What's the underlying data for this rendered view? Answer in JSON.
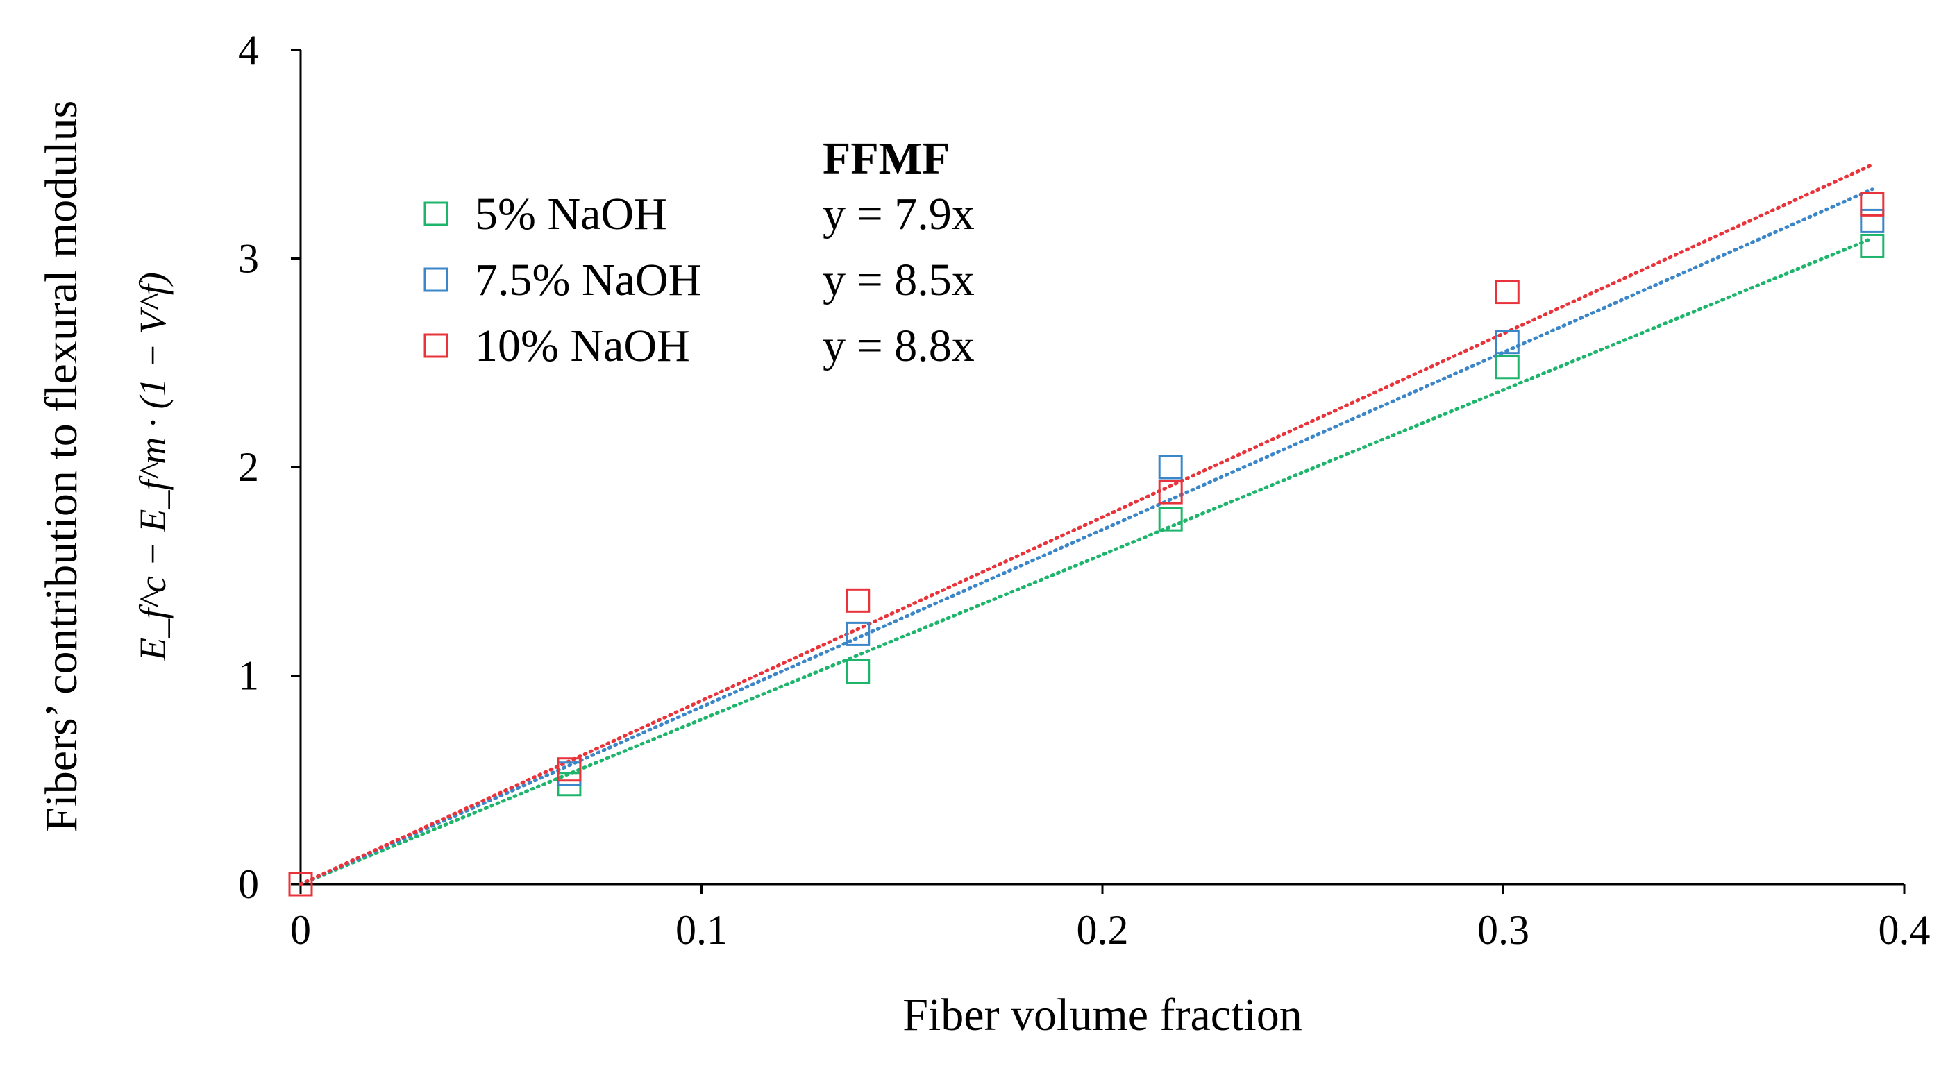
{
  "chart_data": {
    "type": "scatter",
    "xlabel": "Fiber volume fraction",
    "ylabel": "Fibers’ contribution to flexural modulus",
    "ylabel_formula": "E_f^c − E_f^m · (1 − V^f)",
    "xlim": [
      0,
      0.4
    ],
    "ylim": [
      0,
      4
    ],
    "xticks": [
      "0",
      "0.1",
      "0.2",
      "0.3",
      "0.4"
    ],
    "yticks": [
      "0",
      "1",
      "2",
      "3",
      "4"
    ],
    "legend_title": "FFMF",
    "legend_position": "top-left",
    "grid": false,
    "series": [
      {
        "name": "5% NaOH",
        "equation": "y = 7.9x",
        "slope": 7.9,
        "color": "#1db56b",
        "x": [
          0,
          0.067,
          0.139,
          0.217,
          0.301,
          0.392
        ],
        "y": [
          0,
          0.48,
          1.02,
          1.75,
          2.48,
          3.06
        ]
      },
      {
        "name": "7.5% NaOH",
        "equation": "y = 8.5x",
        "slope": 8.5,
        "color": "#3b86c8",
        "x": [
          0,
          0.067,
          0.139,
          0.217,
          0.301,
          0.392
        ],
        "y": [
          0,
          0.53,
          1.2,
          2.0,
          2.6,
          3.18
        ]
      },
      {
        "name": "10% NaOH",
        "equation": "y = 8.8x",
        "slope": 8.8,
        "color": "#e8333a",
        "x": [
          0,
          0.067,
          0.139,
          0.217,
          0.301,
          0.392
        ],
        "y": [
          0,
          0.55,
          1.36,
          1.88,
          2.84,
          3.26
        ]
      }
    ]
  }
}
